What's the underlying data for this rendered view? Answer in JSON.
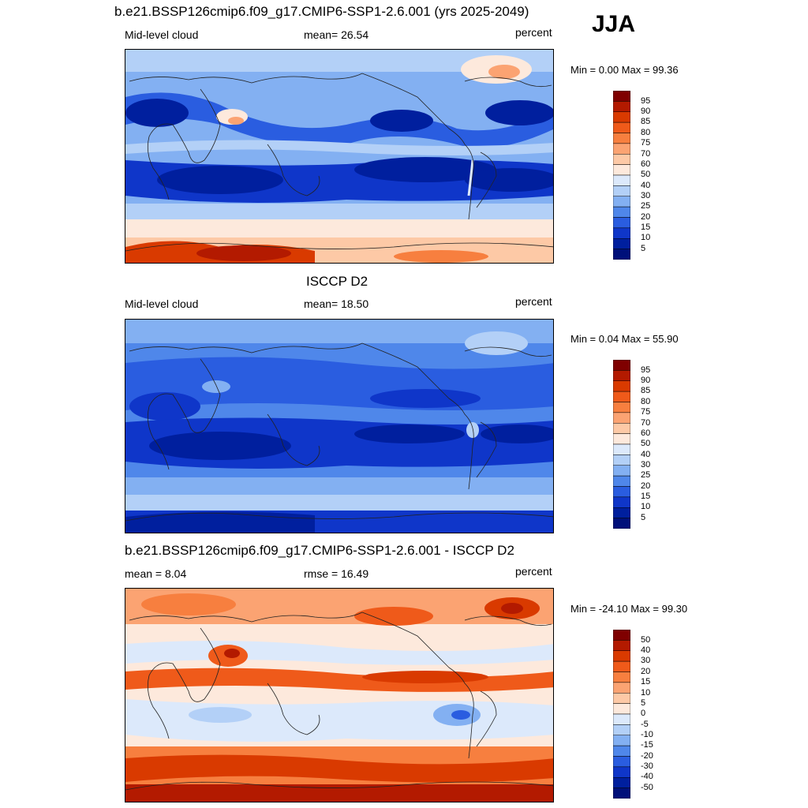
{
  "season": "JJA",
  "panels": [
    {
      "title": "b.e21.BSSP126cmip6.f09_g17.CMIP6-SSP1-2.6.001 (yrs 2025-2049)",
      "left_label": "Mid-level cloud",
      "center_label": "mean=  26.54",
      "right_label": "percent",
      "minmax": "Min =    0.00 Max =  99.36",
      "cbar_labels": [
        "95",
        "90",
        "85",
        "80",
        "75",
        "70",
        "60",
        "50",
        "40",
        "30",
        "25",
        "20",
        "15",
        "10",
        "5"
      ]
    },
    {
      "title": "ISCCP D2",
      "left_label": "Mid-level cloud",
      "center_label": "mean=  18.50",
      "right_label": "percent",
      "minmax": "Min =    0.04 Max =  55.90",
      "cbar_labels": [
        "95",
        "90",
        "85",
        "80",
        "75",
        "70",
        "60",
        "50",
        "40",
        "30",
        "25",
        "20",
        "15",
        "10",
        "5"
      ]
    },
    {
      "title": "b.e21.BSSP126cmip6.f09_g17.CMIP6-SSP1-2.6.001 - ISCCP D2",
      "left_label": "mean =   8.04",
      "center_label": "rmse =  16.49",
      "right_label": "percent",
      "minmax": "Min = -24.10 Max =  99.30",
      "cbar_labels": [
        "50",
        "40",
        "30",
        "20",
        "15",
        "10",
        "5",
        "0",
        "-5",
        "-10",
        "-15",
        "-20",
        "-30",
        "-40",
        "-50"
      ]
    }
  ],
  "palette": [
    "#7f0000",
    "#b31a00",
    "#d93a00",
    "#ef5a1a",
    "#f77f3f",
    "#fba372",
    "#fdc9a6",
    "#fde9dc",
    "#dce9fb",
    "#b3d0f7",
    "#83b0f2",
    "#4f87ea",
    "#2a5de0",
    "#0f36c9",
    "#001f9e",
    "#00107a"
  ]
}
